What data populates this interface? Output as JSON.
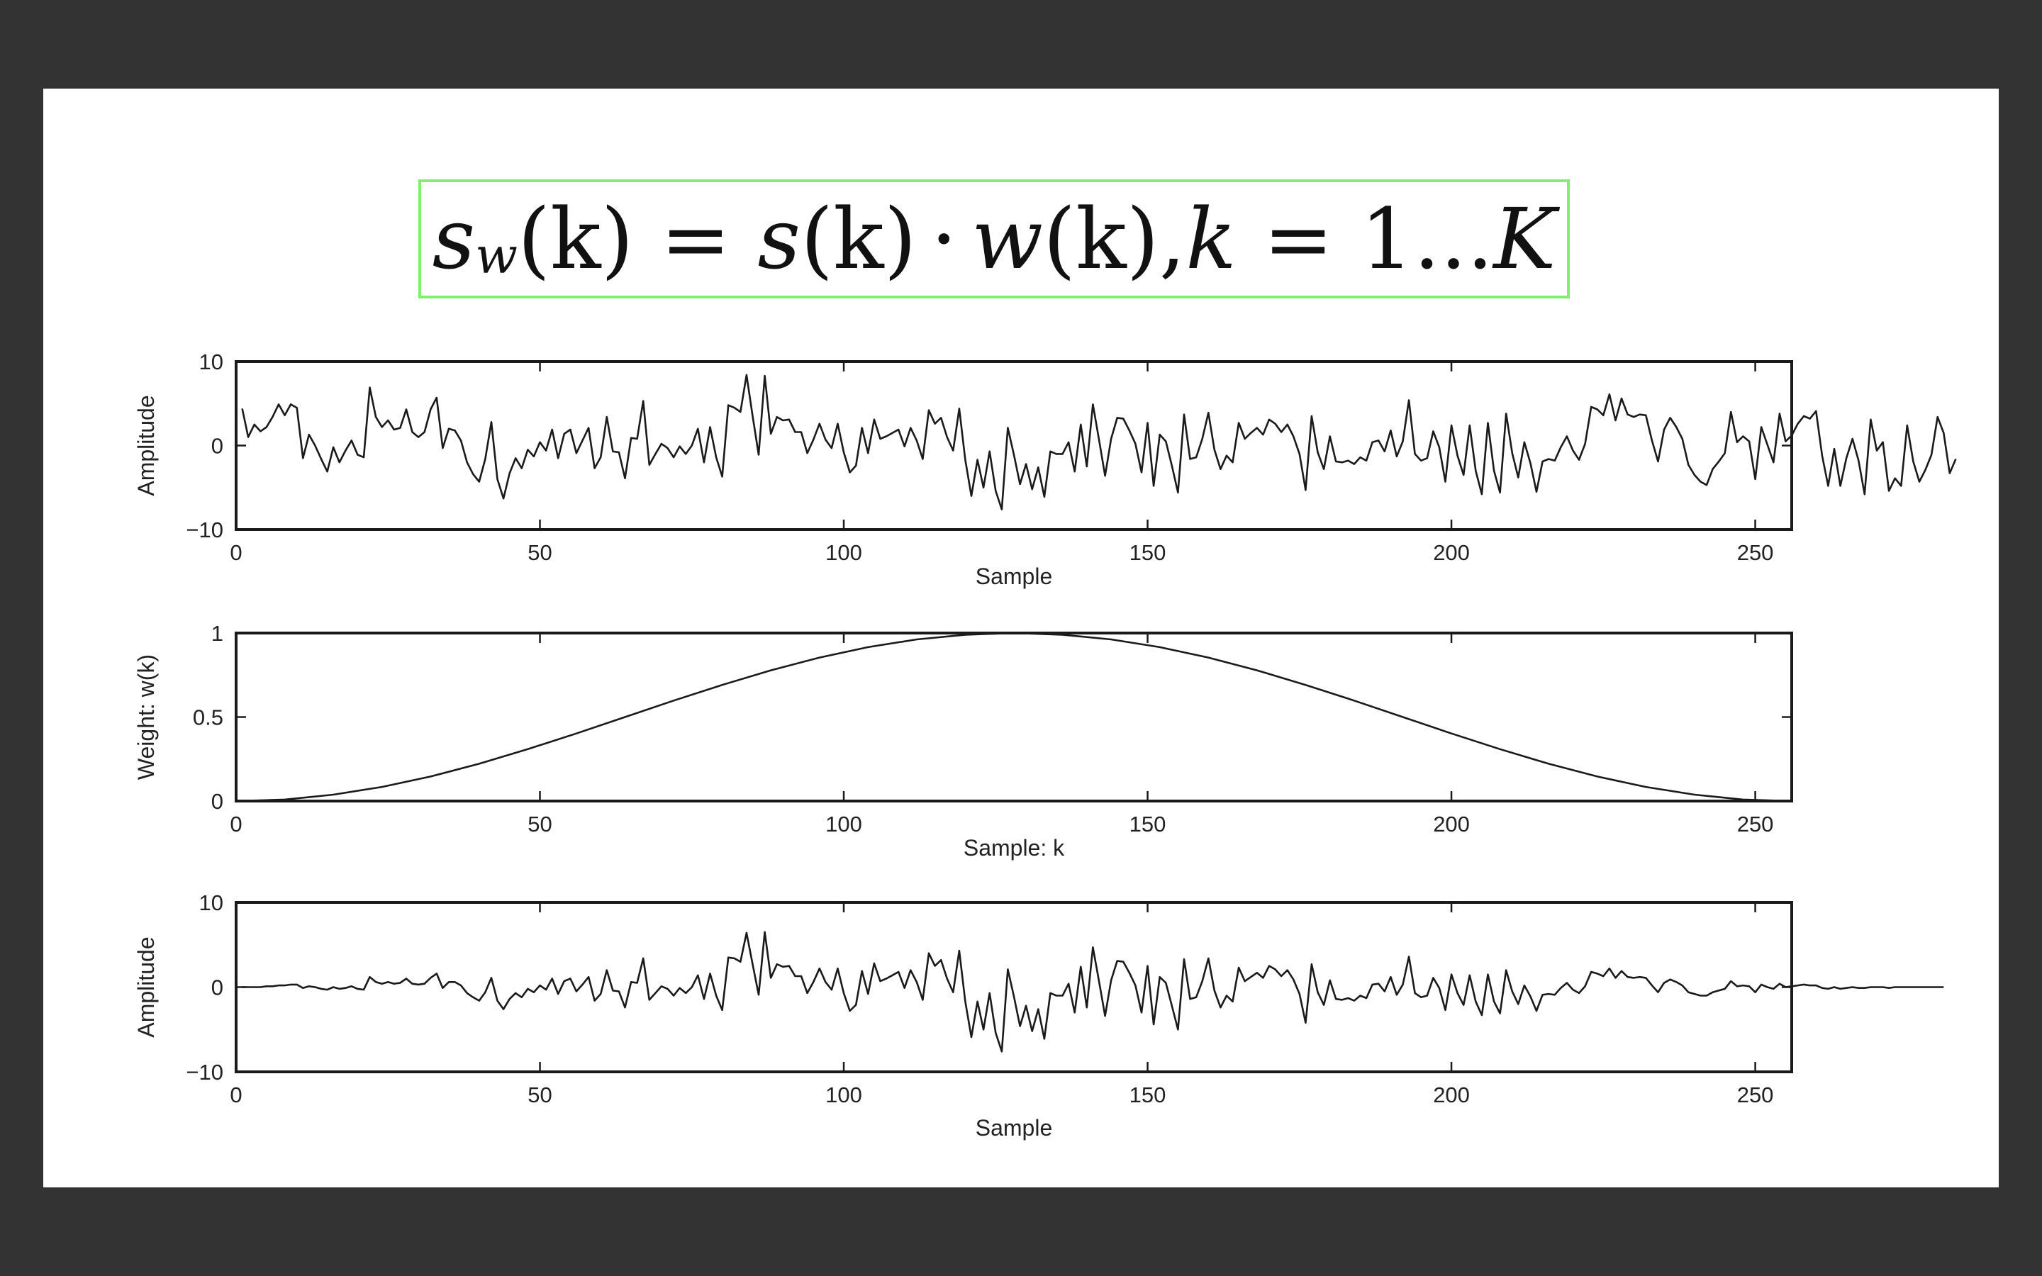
{
  "formula": {
    "text": "s_w(k) = s(k) · w(k), k = 1...K",
    "parts": {
      "s": "s",
      "w_sub": "w",
      "lhs_rest": "(k)",
      "eq": "=",
      "s2": "s",
      "k_paren": "(k)",
      "dot": "·",
      "w": "w",
      "k_paren2": "(k),",
      "k": "k",
      "eq2": "=",
      "range": "1...",
      "K": "K"
    }
  },
  "colors": {
    "background": "#333333",
    "slide": "#ffffff",
    "formula_border": "#7ef06a",
    "line": "#1a1a1a"
  },
  "chart_data": [
    {
      "type": "line",
      "title": "",
      "xlabel": "Sample",
      "ylabel": "Amplitude",
      "xlim": [
        0,
        256
      ],
      "ylim": [
        -10,
        10
      ],
      "xticks": [
        0,
        50,
        100,
        150,
        200,
        250
      ],
      "yticks": [
        -10,
        0,
        10
      ],
      "ytick_labels": [
        "−10",
        "0",
        "10"
      ],
      "grid": false,
      "series": [
        {
          "x_start": 1,
          "values": [
            4.4,
            1,
            2.5,
            1.7,
            2.2,
            3.4,
            4.9,
            3.6,
            4.9,
            4.5,
            -1.5,
            1.3,
            0,
            -1.6,
            -3.1,
            -0.2,
            -2,
            -0.6,
            0.6,
            -1.1,
            -1.4,
            6.9,
            3.4,
            2.2,
            3,
            1.9,
            2.1,
            4.3,
            1.6,
            1,
            1.6,
            4.3,
            5.7,
            -0.3,
            2,
            1.8,
            0.6,
            -2,
            -3.4,
            -4.3,
            -1.6,
            2.8,
            -4,
            -6.3,
            -3.3,
            -1.5,
            -2.7,
            -0.5,
            -1.3,
            0.4,
            -0.6,
            1.9,
            -1.5,
            1.4,
            1.9,
            -0.9,
            0.6,
            2.1,
            -2.7,
            -1.4,
            3.4,
            -0.7,
            -0.8,
            -3.9,
            0.9,
            0.8,
            5.3,
            -2.3,
            -1,
            0.2,
            -0.3,
            -1.4,
            -0.1,
            -1,
            0,
            2,
            -2,
            2.2,
            -1.4,
            -3.7,
            4.8,
            4.5,
            4,
            8.4,
            3.5,
            -1.1,
            8.3,
            1.4,
            3.4,
            3,
            3.1,
            1.6,
            1.6,
            -0.9,
            0.7,
            2.6,
            0.7,
            -0.3,
            2.6,
            -0.8,
            -3.2,
            -2.4,
            2.1,
            -0.9,
            3.1,
            0.8,
            1.1,
            1.5,
            1.9,
            -0.1,
            2.1,
            0.6,
            -1.6,
            4.2,
            2.6,
            3.3,
            1,
            -0.6,
            4.4,
            -1.7,
            -6,
            -1.7,
            -5,
            -0.7,
            -5.4,
            -7.6,
            2.1,
            -1.1,
            -4.6,
            -2.2,
            -5.2,
            -2.6,
            -6.1,
            -0.7,
            -1,
            -1,
            0.4,
            -3.1,
            2.5,
            -2.5,
            4.9,
            0.7,
            -3.6,
            0.8,
            3.3,
            3.2,
            1.8,
            0.2,
            -3.2,
            2.7,
            -4.8,
            1.3,
            0.5,
            -2.4,
            -5.6,
            3.7,
            -1.6,
            -1.4,
            0.8,
            3.9,
            -0.5,
            -2.8,
            -1.2,
            -2,
            2.7,
            0.8,
            1.5,
            2.1,
            1.3,
            3.1,
            2.6,
            1.6,
            2.5,
            1.1,
            -1,
            -5.3,
            3.5,
            -0.8,
            -2.8,
            1.1,
            -1.9,
            -2,
            -1.8,
            -2.2,
            -1.4,
            -1.8,
            0.4,
            0.6,
            -0.7,
            1.8,
            -1.3,
            0.5,
            5.4,
            -1,
            -1.8,
            -1.5,
            1.7,
            -0.2,
            -4.3,
            2.4,
            -1.2,
            -3.5,
            2.4,
            -3,
            -5.8,
            2.7,
            -3,
            -5.6,
            3.8,
            -0.9,
            -3.8,
            0.4,
            -2.1,
            -5.5,
            -1.9,
            -1.6,
            -1.8,
            -0.2,
            1.1,
            -0.6,
            -1.7,
            0.2,
            4.6,
            4.3,
            3.6,
            6.1,
            3,
            5.6,
            3.7,
            3.4,
            3.7,
            3.6,
            0.6,
            -1.9,
            1.9,
            3.3,
            2.2,
            0.8,
            -2.3,
            -3.5,
            -4.3,
            -4.7,
            -2.8,
            -1.9,
            -0.9,
            4,
            0.4,
            1.1,
            0.5,
            -4,
            2.2,
            0.1,
            -2,
            3.8,
            0.5,
            1.2,
            2.6,
            3.5,
            3.2,
            4.1,
            -1.2,
            -4.8,
            -0.4,
            -4.8,
            -1.5,
            0.8,
            -1.8,
            -5.8,
            3.1,
            -0.6,
            0.4,
            -5.4,
            -3.9,
            -4.8,
            2.4,
            -1.9,
            -4.3,
            -2.9,
            -1.1,
            3.4,
            1.5,
            -3.3,
            -1.6
          ]
        }
      ]
    },
    {
      "type": "line",
      "title": "",
      "xlabel": "Sample: k",
      "ylabel": "Weight: w(k)",
      "xlim": [
        0,
        256
      ],
      "ylim": [
        0,
        1
      ],
      "xticks": [
        0,
        50,
        100,
        150,
        200,
        250
      ],
      "yticks": [
        0,
        0.5,
        1
      ],
      "ytick_labels": [
        "0",
        "0.5",
        "1"
      ],
      "grid": false,
      "series": [
        {
          "x": [
            0,
            8,
            16,
            24,
            32,
            40,
            48,
            56,
            64,
            72,
            80,
            88,
            96,
            104,
            112,
            120,
            128,
            136,
            144,
            152,
            160,
            168,
            176,
            184,
            192,
            200,
            208,
            216,
            224,
            232,
            240,
            248,
            256
          ],
          "values": [
            0,
            0.009,
            0.038,
            0.084,
            0.146,
            0.222,
            0.309,
            0.402,
            0.5,
            0.598,
            0.691,
            0.778,
            0.854,
            0.916,
            0.962,
            0.99,
            1,
            0.99,
            0.962,
            0.916,
            0.854,
            0.778,
            0.691,
            0.598,
            0.5,
            0.402,
            0.309,
            0.222,
            0.146,
            0.084,
            0.038,
            0.009,
            0
          ]
        }
      ]
    },
    {
      "type": "line",
      "title": "",
      "xlabel": "Sample",
      "ylabel": "Amplitude",
      "xlim": [
        0,
        256
      ],
      "ylim": [
        -10,
        10
      ],
      "xticks": [
        0,
        50,
        100,
        150,
        200,
        250
      ],
      "yticks": [
        -10,
        0,
        10
      ],
      "ytick_labels": [
        "−10",
        "0",
        "10"
      ],
      "grid": false,
      "series": [
        {
          "x_start": 1,
          "values": [
            0,
            0,
            0,
            0,
            0.1,
            0.1,
            0.2,
            0.2,
            0.3,
            0.3,
            -0.1,
            0.1,
            0,
            -0.2,
            -0.3,
            0,
            -0.2,
            -0.1,
            0.1,
            -0.2,
            -0.3,
            1.2,
            0.6,
            0.4,
            0.6,
            0.4,
            0.5,
            1,
            0.4,
            0.3,
            0.4,
            1.1,
            1.6,
            -0.1,
            0.6,
            0.6,
            0.2,
            -0.7,
            -1.2,
            -1.6,
            -0.6,
            1.1,
            -1.6,
            -2.6,
            -1.4,
            -0.7,
            -1.2,
            -0.2,
            -0.6,
            0.2,
            -0.3,
            1,
            -0.8,
            0.7,
            1,
            -0.5,
            0.3,
            1.2,
            -1.6,
            -0.8,
            2,
            -0.4,
            -0.5,
            -2.4,
            0.6,
            0.5,
            3.4,
            -1.5,
            -0.7,
            0.1,
            -0.2,
            -1,
            -0.1,
            -0.7,
            0,
            1.4,
            -1.4,
            1.6,
            -1,
            -2.7,
            3.5,
            3.4,
            3,
            6.4,
            2.7,
            -0.9,
            6.5,
            1.1,
            2.7,
            2.4,
            2.5,
            1.3,
            1.3,
            -0.7,
            0.6,
            2.2,
            0.6,
            -0.3,
            2.2,
            -0.7,
            -2.8,
            -2.1,
            1.9,
            -0.8,
            2.8,
            0.7,
            1,
            1.4,
            1.8,
            -0.1,
            2,
            0.6,
            -1.5,
            4,
            2.5,
            3.2,
            1,
            -0.6,
            4.3,
            -1.7,
            -5.9,
            -1.7,
            -5,
            -0.7,
            -5.4,
            -7.6,
            2.1,
            -1.1,
            -4.6,
            -2.2,
            -5.2,
            -2.6,
            -6.1,
            -0.7,
            -1,
            -1,
            0.4,
            -3,
            2.4,
            -2.4,
            4.7,
            0.7,
            -3.4,
            0.8,
            3.1,
            3,
            1.7,
            0.2,
            -3,
            2.5,
            -4.4,
            1.2,
            0.5,
            -2.2,
            -5,
            3.3,
            -1.4,
            -1.2,
            0.7,
            3.4,
            -0.4,
            -2.4,
            -1,
            -1.7,
            2.3,
            0.7,
            1.2,
            1.7,
            1.1,
            2.5,
            2.1,
            1.3,
            2,
            0.9,
            -0.8,
            -4.2,
            2.7,
            -0.6,
            -2.1,
            0.8,
            -1.4,
            -1.5,
            -1.3,
            -1.6,
            -1,
            -1.3,
            0.3,
            0.4,
            -0.5,
            1.2,
            -0.9,
            0.3,
            3.6,
            -0.7,
            -1.2,
            -1,
            1.1,
            -0.1,
            -2.7,
            1.5,
            -0.7,
            -2.1,
            1.4,
            -1.7,
            -3.3,
            1.5,
            -1.7,
            -3.1,
            2,
            -0.5,
            -2,
            0.2,
            -1.1,
            -2.8,
            -0.9,
            -0.8,
            -0.9,
            -0.1,
            0.5,
            -0.3,
            -0.7,
            0.1,
            1.8,
            1.6,
            1.3,
            2.2,
            1.1,
            1.9,
            1.2,
            1.1,
            1.2,
            1.1,
            0.2,
            -0.6,
            0.5,
            0.9,
            0.6,
            0.2,
            -0.6,
            -0.8,
            -1,
            -1,
            -0.6,
            -0.4,
            -0.2,
            0.7,
            0.1,
            0.2,
            0.1,
            -0.6,
            0.3,
            0,
            -0.2,
            0.4,
            0,
            0.1,
            0.2,
            0.3,
            0.2,
            0.2,
            -0.1,
            -0.2,
            0,
            -0.2,
            -0.1,
            0,
            -0.1,
            -0.1,
            0,
            0,
            0,
            -0.1,
            0,
            0,
            0,
            0,
            0,
            0,
            0,
            0,
            0
          ]
        }
      ]
    }
  ]
}
